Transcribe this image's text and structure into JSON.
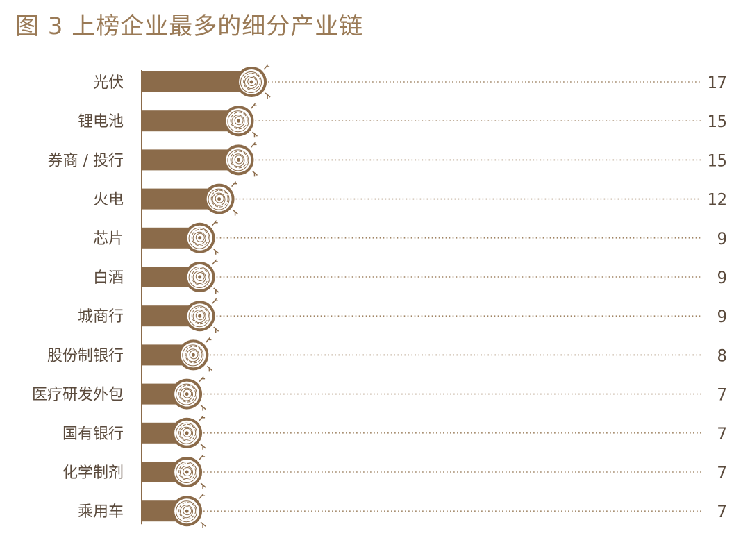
{
  "chart_data": {
    "type": "bar",
    "orientation": "horizontal",
    "title": "图 3  上榜企业最多的细分产业链",
    "xlabel": "",
    "ylabel": "",
    "categories": [
      "光伏",
      "锂电池",
      "券商 / 投行",
      "火电",
      "芯片",
      "白酒",
      "城商行",
      "股份制银行",
      "医疗研发外包",
      "国有银行",
      "化学制剂",
      "乘用车"
    ],
    "values": [
      17,
      15,
      15,
      12,
      9,
      9,
      9,
      8,
      7,
      7,
      7,
      7
    ],
    "xlim": [
      0,
      17
    ],
    "grid": false,
    "legend": "none"
  },
  "colors": {
    "bar": "#8b6b4a",
    "title": "#9a7a56",
    "text": "#5a4a3c",
    "dots": "#a08464"
  }
}
